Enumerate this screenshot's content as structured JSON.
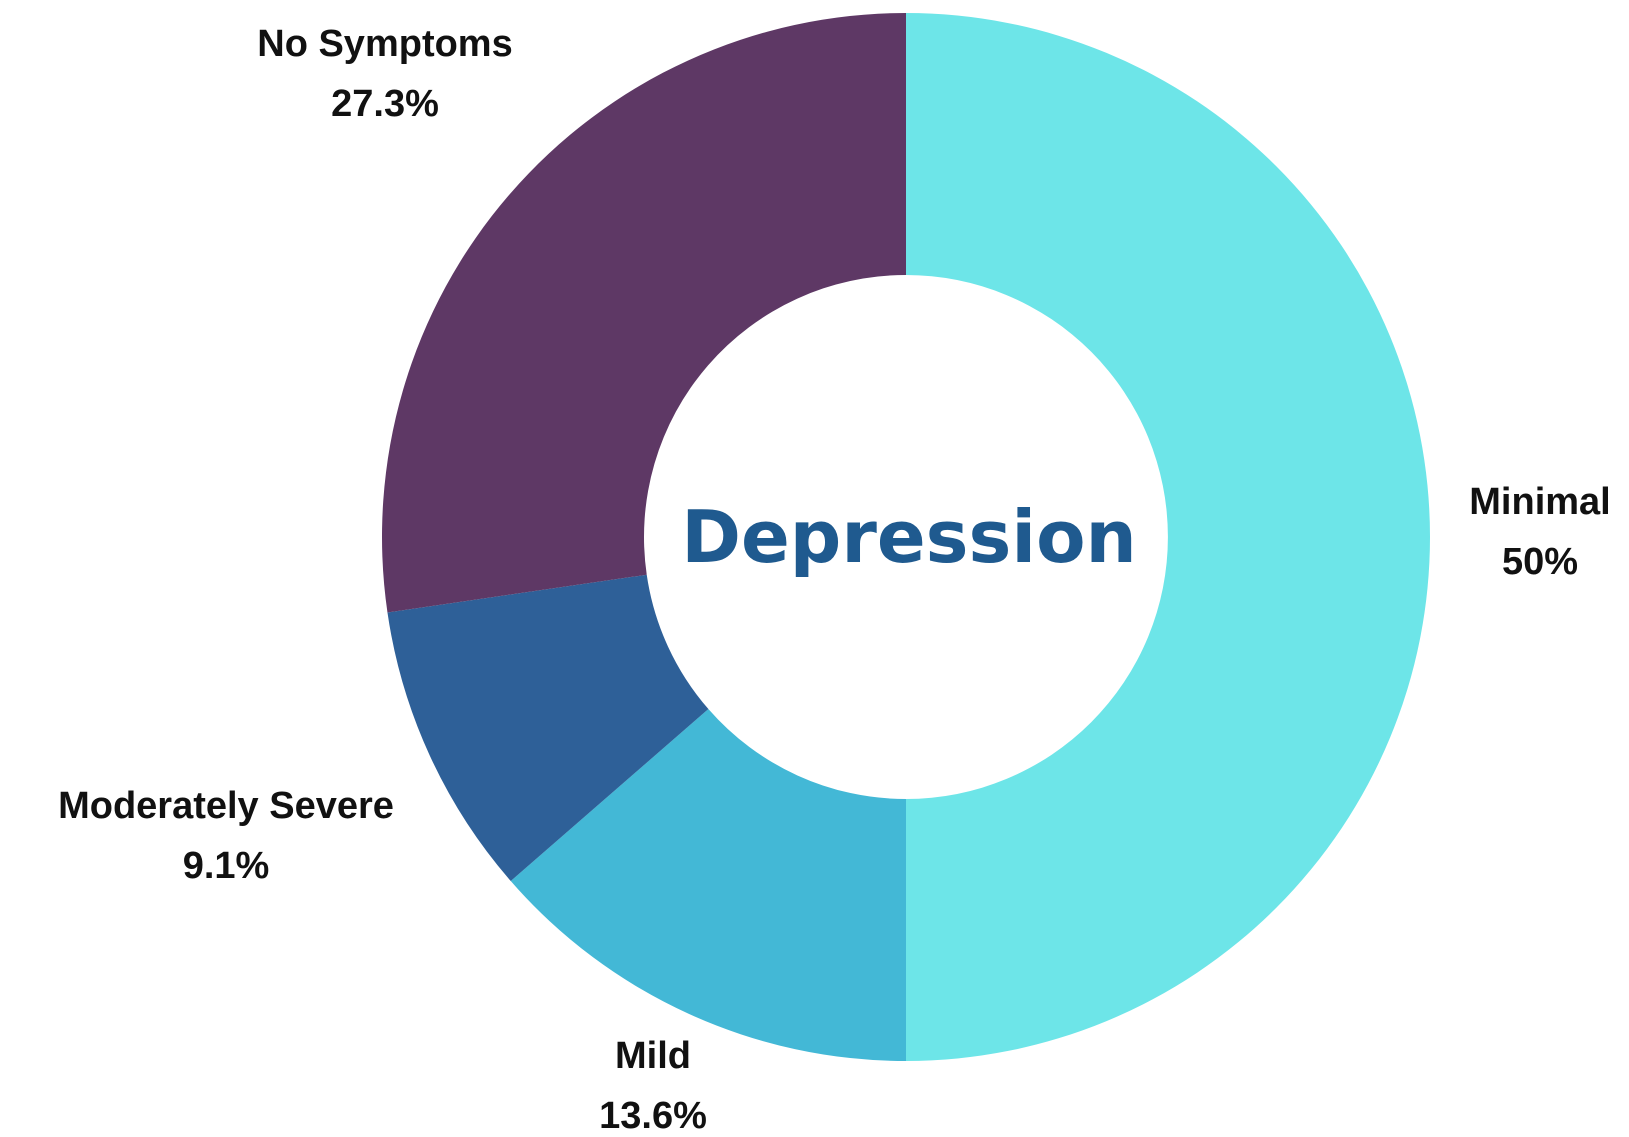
{
  "chart_data": {
    "type": "pie",
    "variant": "donut",
    "title": "Depression",
    "title_color": "#1f5a8f",
    "slices": [
      {
        "label": "Minimal",
        "value": 50,
        "value_label": "50%",
        "color": "#6de5e8"
      },
      {
        "label": "Mild",
        "value": 13.6,
        "value_label": "13.6%",
        "color": "#43b8d6"
      },
      {
        "label": "Moderately Severe",
        "value": 9.1,
        "value_label": "9.1%",
        "color": "#2e6098"
      },
      {
        "label": "No Symptoms",
        "value": 27.3,
        "value_label": "27.3%",
        "color": "#5e3865"
      }
    ],
    "start_angle": "12 o'clock",
    "direction": "clockwise",
    "legend": "none (labels beside slices)"
  }
}
